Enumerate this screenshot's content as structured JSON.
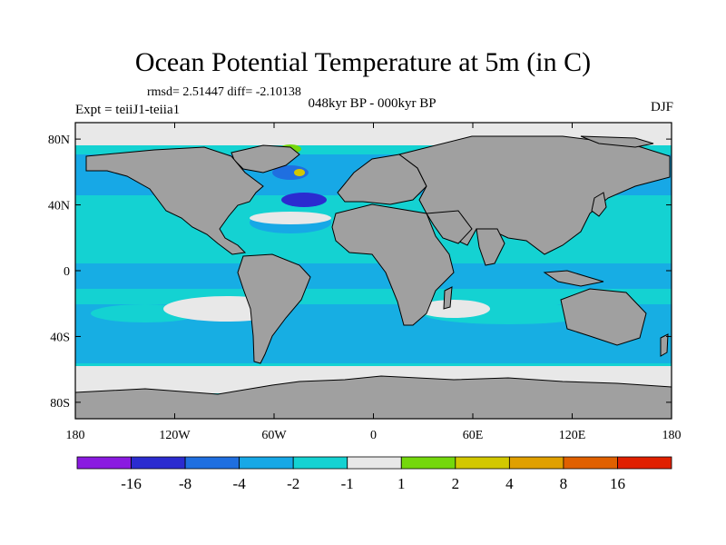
{
  "header": {
    "title": "Ocean Potential Temperature at 5m (in C)",
    "stats": "rmsd= 2.51447  diff= -2.10138",
    "period": "048kyr BP - 000kyr BP",
    "experiment": "Expt = teiiJ1-teiia1",
    "season": "DJF"
  },
  "chart_data": {
    "type": "heatmap",
    "title": "Ocean Potential Temperature at 5m (in C)",
    "subtitle": "048kyr BP - 000kyr BP",
    "x_ticks": [
      -180,
      -120,
      -60,
      0,
      60,
      120,
      180
    ],
    "x_tick_labels": [
      "180",
      "120W",
      "60W",
      "0",
      "60E",
      "120E",
      "180"
    ],
    "y_ticks": [
      80,
      40,
      0,
      -40,
      -80
    ],
    "y_tick_labels": [
      "80N",
      "40N",
      "0",
      "40S",
      "80S"
    ],
    "xlim": [
      -180,
      180
    ],
    "ylim": [
      -90,
      90
    ],
    "colorbar": {
      "levels": [
        -16,
        -8,
        -4,
        -2,
        -1,
        1,
        2,
        4,
        8,
        16
      ],
      "level_labels": [
        "-16",
        "-8",
        "-4",
        "-2",
        "-1",
        "1",
        "2",
        "4",
        "8",
        "16"
      ],
      "colors": [
        "#8a1ae0",
        "#2b2bd0",
        "#1f6fe0",
        "#17a8e6",
        "#14d2d2",
        "#e8e8e8",
        "#74d80c",
        "#d2c800",
        "#e0a000",
        "#e06000",
        "#e02000"
      ]
    }
  }
}
